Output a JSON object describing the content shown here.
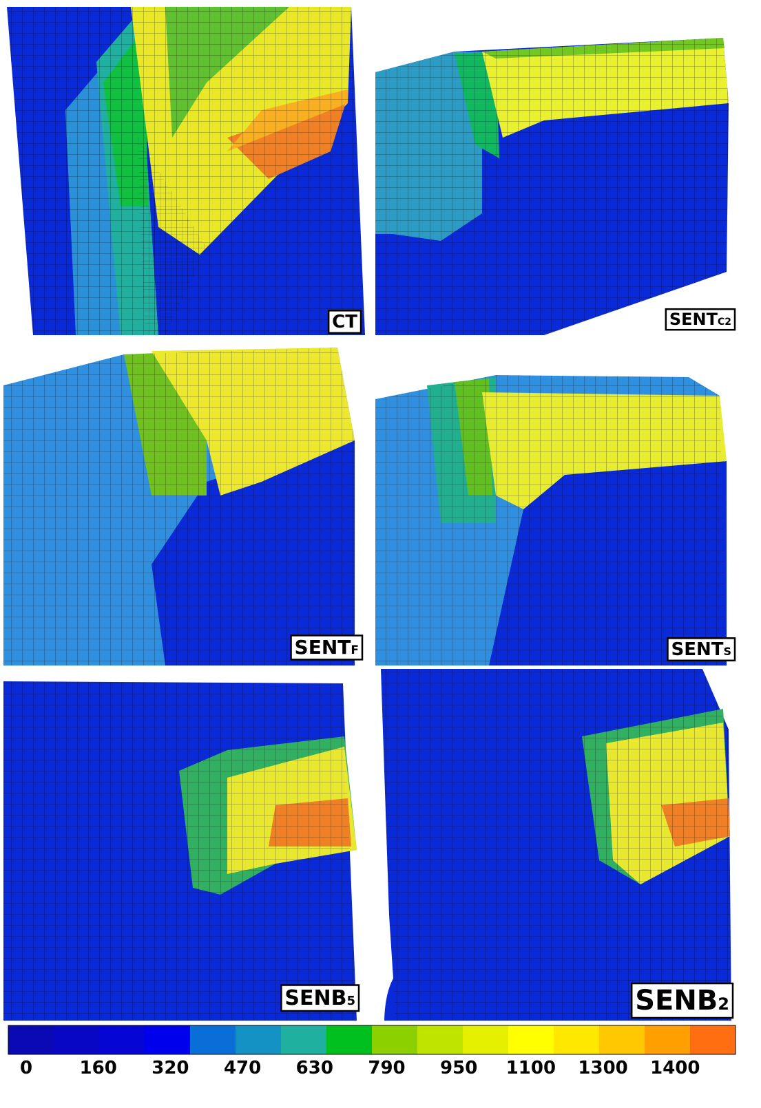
{
  "panels": [
    {
      "name": "CT"
    },
    {
      "name": "SENT",
      "subscript": "C2"
    },
    {
      "name": "SENT",
      "subscript": "F"
    },
    {
      "name": "SENT",
      "subscript": "S"
    },
    {
      "name": "SENB",
      "subscript": "5"
    },
    {
      "name": "SENB",
      "subscript": "2"
    }
  ],
  "colorbar": {
    "colors": [
      "#0a0ab4",
      "#0808c4",
      "#0606d4",
      "#0000ec",
      "#0a6ed8",
      "#1492c4",
      "#20b0a0",
      "#00c020",
      "#8cd000",
      "#bee400",
      "#e4f000",
      "#ffff00",
      "#ffe800",
      "#ffc800",
      "#ffa000",
      "#ff6e10"
    ],
    "ticks": [
      0,
      160,
      320,
      470,
      630,
      790,
      950,
      1100,
      1300,
      1400
    ]
  }
}
